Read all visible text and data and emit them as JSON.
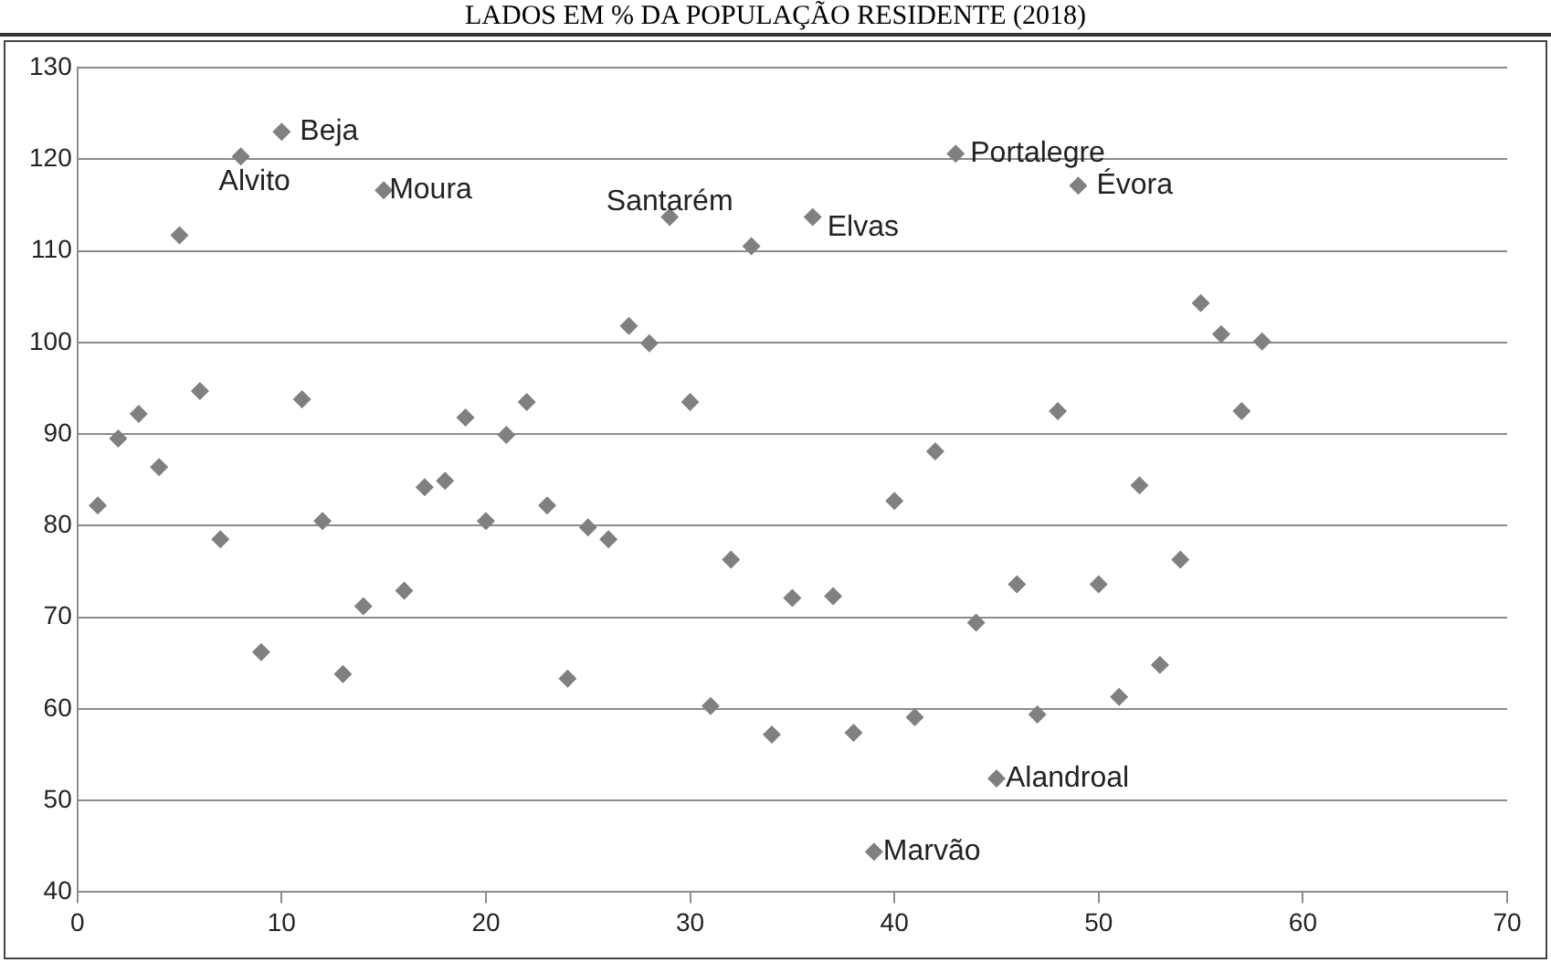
{
  "chart_data": {
    "type": "scatter",
    "title": "LADOS EM % DA POPULAÇÃO RESIDENTE (2018)",
    "x": [
      1,
      2,
      3,
      4,
      5,
      6,
      7,
      8,
      9,
      10,
      11,
      12,
      13,
      14,
      15,
      16,
      17,
      18,
      19,
      20,
      21,
      22,
      23,
      24,
      25,
      26,
      27,
      28,
      29,
      30,
      31,
      32,
      33,
      34,
      35,
      36,
      37,
      38,
      39,
      40,
      41,
      42,
      43,
      44,
      45,
      46,
      47,
      48,
      49,
      50,
      51,
      52,
      53,
      54,
      55,
      56,
      57,
      58
    ],
    "series": [
      {
        "color": "#808080",
        "values": [
          82.2,
          89.5,
          92.2,
          86.4,
          111.7,
          94.7,
          78.5,
          120.3,
          66.2,
          123,
          93.8,
          80.5,
          63.8,
          71.2,
          116.6,
          72.9,
          84.2,
          84.9,
          91.8,
          80.5,
          89.9,
          93.5,
          82.2,
          63.3,
          79.8,
          78.5,
          101.8,
          99.9,
          113.7,
          93.5,
          60.3,
          76.3,
          110.5,
          57.2,
          72.1,
          113.7,
          72.3,
          57.4,
          44.4,
          82.7,
          59.1,
          88.1,
          120.6,
          69.4,
          52.4,
          73.6,
          59.4,
          92.5,
          117.1,
          73.6,
          61.3,
          84.4,
          64.8,
          76.3,
          104.3,
          100.9,
          92.5,
          100.1
        ]
      }
    ],
    "annotations": [
      {
        "text": "Beja",
        "x": 10,
        "y": 123
      },
      {
        "text": "Alvito",
        "x": 8,
        "y": 120.3
      },
      {
        "text": "Moura",
        "x": 15,
        "y": 116.6
      },
      {
        "text": "Santarém",
        "x": 29,
        "y": 113.7
      },
      {
        "text": "Elvas",
        "x": 36,
        "y": 113.7
      },
      {
        "text": "Portalegre",
        "x": 43,
        "y": 120.6
      },
      {
        "text": "Évora",
        "x": 49,
        "y": 117.1
      },
      {
        "text": "Alandroal",
        "x": 45,
        "y": 52.4
      },
      {
        "text": "Marvão",
        "x": 39,
        "y": 44.4
      }
    ],
    "xlim": [
      0,
      70
    ],
    "xticks": [
      0,
      10,
      20,
      30,
      40,
      50,
      60,
      70
    ],
    "ylim": [
      40,
      130
    ],
    "yticks": [
      40,
      50,
      60,
      70,
      80,
      90,
      100,
      110,
      120,
      130
    ],
    "grid": "y",
    "legend": false,
    "marker": "diamond"
  }
}
